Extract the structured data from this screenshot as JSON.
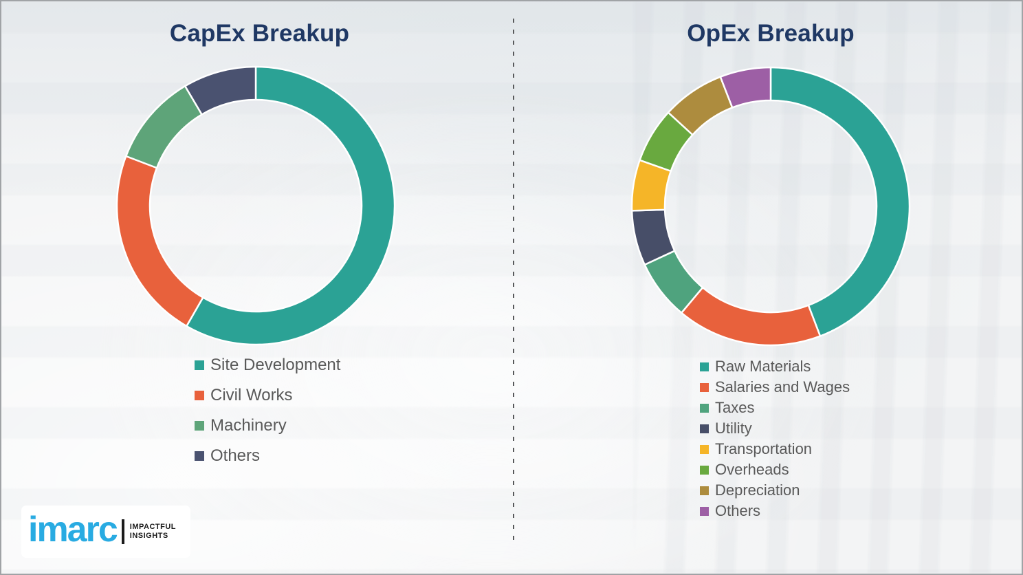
{
  "page": {
    "background_color": "#f3f4f5",
    "border_color": "#a0a3a6",
    "divider_color": "#58595b",
    "title_color": "#1f3864",
    "legend_text_color": "#595959"
  },
  "chart_data": [
    {
      "type": "pie",
      "variant": "donut",
      "title": "CapEx Breakup",
      "categories": [
        "Site Development",
        "Civil Works",
        "Machinery",
        "Others"
      ],
      "values": [
        58.3,
        22.5,
        10.7,
        8.5
      ],
      "values_note": "percent, estimated from arc angles (no data labels shown)",
      "colors": [
        "#2BA295",
        "#E8613C",
        "#5EA479",
        "#4A5270"
      ],
      "start_angle_deg": 0,
      "direction": "clockwise",
      "legend_position": "below-left",
      "slice_border_color": "#ffffff"
    },
    {
      "type": "pie",
      "variant": "donut",
      "title": "OpEx Breakup",
      "categories": [
        "Raw Materials",
        "Salaries and Wages",
        "Taxes",
        "Utility",
        "Transportation",
        "Overheads",
        "Depreciation",
        "Others"
      ],
      "values": [
        44.2,
        16.9,
        7.0,
        6.4,
        5.9,
        6.4,
        7.3,
        5.9
      ],
      "values_note": "percent, estimated from arc angles (no data labels shown)",
      "colors": [
        "#2BA295",
        "#E8613C",
        "#4FA37E",
        "#474E68",
        "#F5B528",
        "#69A93F",
        "#AD8C3E",
        "#9D5FA5"
      ],
      "start_angle_deg": 0,
      "direction": "clockwise",
      "legend_position": "below-left",
      "slice_border_color": "#ffffff"
    }
  ],
  "logo": {
    "brand": "imarc",
    "brand_color": "#29ABE2",
    "tagline_line1": "IMPACTFUL",
    "tagline_line2": "INSIGHTS"
  }
}
